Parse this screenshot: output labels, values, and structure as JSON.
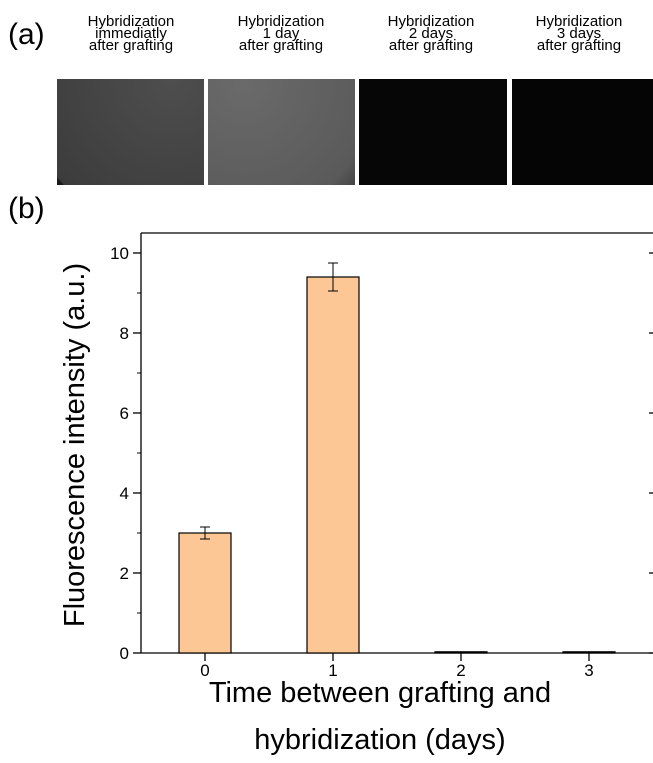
{
  "panels": {
    "a_label": "(a)",
    "b_label": "(b)"
  },
  "micrographs": [
    {
      "caption_lines": [
        "Hybridization",
        "immediatly",
        "after grafting"
      ]
    },
    {
      "caption_lines": [
        "Hybridization",
        "1 day",
        "after grafting"
      ]
    },
    {
      "caption_lines": [
        "Hybridization",
        "2 days",
        "after grafting"
      ]
    },
    {
      "caption_lines": [
        "Hybridization",
        "3 days",
        "after grafting"
      ]
    }
  ],
  "chart_data": {
    "type": "bar",
    "categories": [
      "0",
      "1",
      "2",
      "3"
    ],
    "values": [
      3.0,
      9.4,
      0.03,
      0.03
    ],
    "errors": [
      0.15,
      0.35,
      0.0,
      0.0
    ],
    "title": "",
    "xlabel_lines": [
      "Time between grafting and",
      "hybridization (days)"
    ],
    "ylabel": "Fluorescence intensity (a.u.)",
    "ylim": [
      0,
      10.5
    ],
    "yticks": [
      0,
      2,
      4,
      6,
      8,
      10
    ],
    "grid": false,
    "legend": "none",
    "colors": {
      "bar_fill": "#fcc794",
      "bar_stroke": "#000000",
      "axis": "#000000"
    }
  }
}
